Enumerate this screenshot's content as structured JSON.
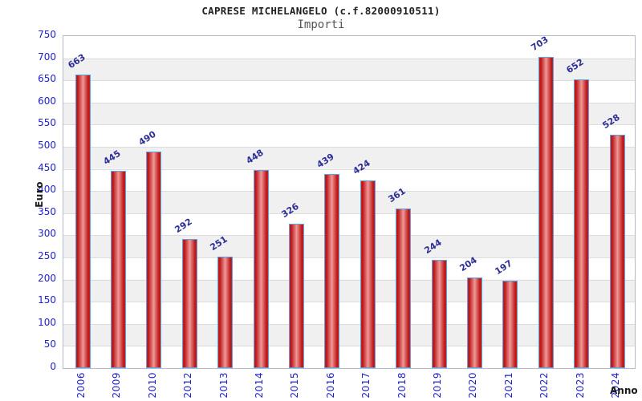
{
  "chart_data": {
    "type": "bar",
    "title": "CAPRESE MICHELANGELO (c.f.82000910511)",
    "subtitle": "Importi",
    "categories": [
      "2006",
      "2009",
      "2010",
      "2012",
      "2013",
      "2014",
      "2015",
      "2016",
      "2017",
      "2018",
      "2019",
      "2020",
      "2021",
      "2022",
      "2023",
      "2024"
    ],
    "values": [
      663,
      445,
      490,
      292,
      251,
      448,
      326,
      439,
      424,
      361,
      244,
      204,
      197,
      703,
      652,
      528
    ],
    "xlabel": "Anno",
    "ylabel": "Euro",
    "ylim": [
      0,
      750
    ],
    "ytick_step": 50,
    "grid": "horizontal",
    "legend": "none",
    "colors": {
      "bar_edge": "#56a4e8",
      "bar_dark": "#d42020",
      "bar_deep": "#bb1414",
      "bar_light": "#f09898",
      "value_label": "#2e2e99",
      "tick_label": "#2121cc",
      "band": "#f0f0f0",
      "gridline": "#dcdcdc",
      "plot_border": "#b4bac6"
    }
  }
}
